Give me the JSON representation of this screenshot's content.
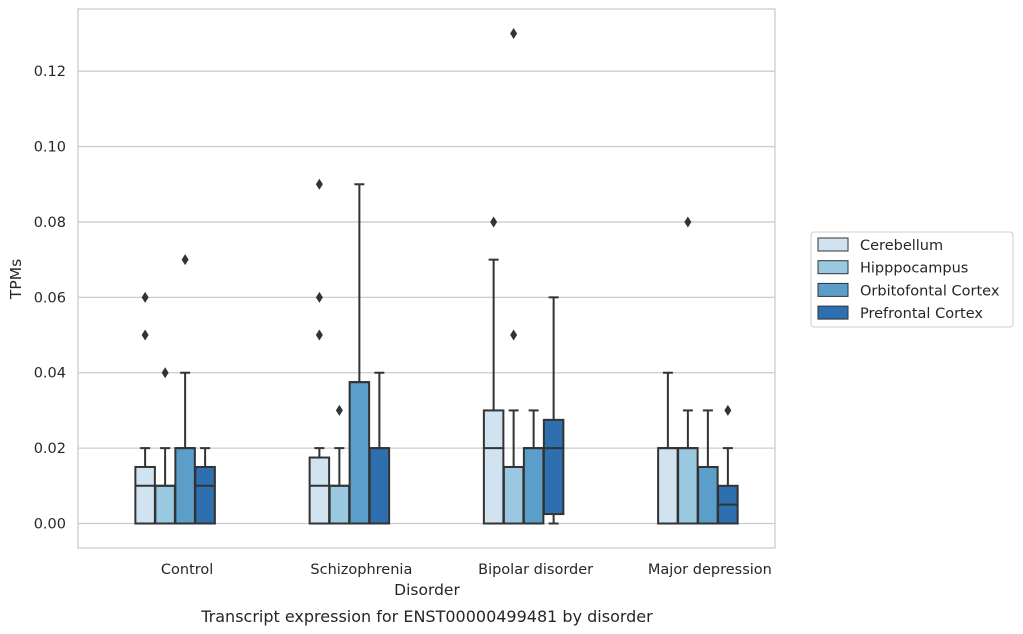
{
  "chart_data": {
    "type": "box",
    "title": "",
    "caption": "Transcript expression for ENST00000499481 by disorder",
    "xlabel": "Disorder",
    "ylabel": "TPMs",
    "ylim": [
      -0.0065,
      0.1365
    ],
    "yticks": [
      0.0,
      0.02,
      0.04,
      0.06,
      0.08,
      0.1,
      0.12
    ],
    "ytick_labels": [
      "0.00",
      "0.02",
      "0.04",
      "0.06",
      "0.08",
      "0.10",
      "0.12"
    ],
    "grid": "horizontal",
    "legend_position": "right",
    "categories": [
      "Control",
      "Schizophrenia",
      "Bipolar disorder",
      "Major depression"
    ],
    "series": [
      {
        "name": "Cerebellum",
        "color": "#d1e2f1",
        "boxes": [
          {
            "q1": 0.0,
            "median": 0.01,
            "q3": 0.015,
            "whisker_low": 0.0,
            "whisker_high": 0.02,
            "outliers": [
              0.05,
              0.06
            ]
          },
          {
            "q1": 0.0,
            "median": 0.01,
            "q3": 0.0175,
            "whisker_low": 0.0,
            "whisker_high": 0.02,
            "outliers": [
              0.05,
              0.06,
              0.09
            ]
          },
          {
            "q1": 0.0,
            "median": 0.02,
            "q3": 0.03,
            "whisker_low": 0.0,
            "whisker_high": 0.07,
            "outliers": [
              0.08
            ]
          },
          {
            "q1": 0.0,
            "median": 0.02,
            "q3": 0.02,
            "whisker_low": 0.0,
            "whisker_high": 0.04,
            "outliers": []
          }
        ]
      },
      {
        "name": "Hipppocampus",
        "color": "#9ac8e0",
        "boxes": [
          {
            "q1": 0.0,
            "median": 0.01,
            "q3": 0.01,
            "whisker_low": 0.0,
            "whisker_high": 0.02,
            "outliers": [
              0.04
            ]
          },
          {
            "q1": 0.0,
            "median": 0.01,
            "q3": 0.01,
            "whisker_low": 0.0,
            "whisker_high": 0.02,
            "outliers": [
              0.03
            ]
          },
          {
            "q1": 0.0,
            "median": 0.015,
            "q3": 0.015,
            "whisker_low": 0.0,
            "whisker_high": 0.03,
            "outliers": [
              0.05,
              0.13
            ]
          },
          {
            "q1": 0.0,
            "median": 0.02,
            "q3": 0.02,
            "whisker_low": 0.0,
            "whisker_high": 0.03,
            "outliers": [
              0.08
            ]
          }
        ]
      },
      {
        "name": "Orbitofontal Cortex",
        "color": "#5a9ec9",
        "boxes": [
          {
            "q1": 0.0,
            "median": 0.02,
            "q3": 0.02,
            "whisker_low": 0.0,
            "whisker_high": 0.04,
            "outliers": [
              0.07
            ]
          },
          {
            "q1": 0.0,
            "median": 0.0375,
            "q3": 0.0375,
            "whisker_low": 0.0,
            "whisker_high": 0.09,
            "outliers": []
          },
          {
            "q1": 0.0,
            "median": 0.02,
            "q3": 0.02,
            "whisker_low": 0.0,
            "whisker_high": 0.03,
            "outliers": []
          },
          {
            "q1": 0.0,
            "median": 0.015,
            "q3": 0.015,
            "whisker_low": 0.0,
            "whisker_high": 0.03,
            "outliers": []
          }
        ]
      },
      {
        "name": "Prefrontal Cortex",
        "color": "#2e6fb0",
        "boxes": [
          {
            "q1": 0.0,
            "median": 0.01,
            "q3": 0.015,
            "whisker_low": 0.0,
            "whisker_high": 0.02,
            "outliers": []
          },
          {
            "q1": 0.0,
            "median": 0.02,
            "q3": 0.02,
            "whisker_low": 0.0,
            "whisker_high": 0.04,
            "outliers": []
          },
          {
            "q1": 0.0025,
            "median": 0.02,
            "q3": 0.0275,
            "whisker_low": 0.0,
            "whisker_high": 0.06,
            "outliers": []
          },
          {
            "q1": 0.0,
            "median": 0.005,
            "q3": 0.01,
            "whisker_low": 0.0,
            "whisker_high": 0.02,
            "outliers": [
              0.03
            ]
          }
        ]
      }
    ]
  }
}
